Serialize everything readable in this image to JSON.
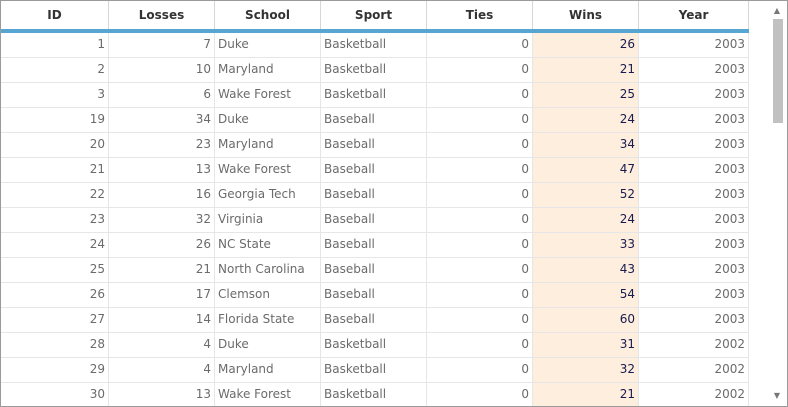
{
  "columns": {
    "id": "ID",
    "losses": "Losses",
    "school": "School",
    "sport": "Sport",
    "ties": "Ties",
    "wins": "Wins",
    "year": "Year"
  },
  "rows": [
    {
      "id": "1",
      "losses": "7",
      "school": "Duke",
      "sport": "Basketball",
      "ties": "0",
      "wins": "26",
      "year": "2003"
    },
    {
      "id": "2",
      "losses": "10",
      "school": "Maryland",
      "sport": "Basketball",
      "ties": "0",
      "wins": "21",
      "year": "2003"
    },
    {
      "id": "3",
      "losses": "6",
      "school": "Wake Forest",
      "sport": "Basketball",
      "ties": "0",
      "wins": "25",
      "year": "2003"
    },
    {
      "id": "19",
      "losses": "34",
      "school": "Duke",
      "sport": "Baseball",
      "ties": "0",
      "wins": "24",
      "year": "2003"
    },
    {
      "id": "20",
      "losses": "23",
      "school": "Maryland",
      "sport": "Baseball",
      "ties": "0",
      "wins": "34",
      "year": "2003"
    },
    {
      "id": "21",
      "losses": "13",
      "school": "Wake Forest",
      "sport": "Baseball",
      "ties": "0",
      "wins": "47",
      "year": "2003"
    },
    {
      "id": "22",
      "losses": "16",
      "school": "Georgia Tech",
      "sport": "Baseball",
      "ties": "0",
      "wins": "52",
      "year": "2003"
    },
    {
      "id": "23",
      "losses": "32",
      "school": "Virginia",
      "sport": "Baseball",
      "ties": "0",
      "wins": "24",
      "year": "2003"
    },
    {
      "id": "24",
      "losses": "26",
      "school": "NC State",
      "sport": "Baseball",
      "ties": "0",
      "wins": "33",
      "year": "2003"
    },
    {
      "id": "25",
      "losses": "21",
      "school": "North Carolina",
      "sport": "Baseball",
      "ties": "0",
      "wins": "43",
      "year": "2003"
    },
    {
      "id": "26",
      "losses": "17",
      "school": "Clemson",
      "sport": "Baseball",
      "ties": "0",
      "wins": "54",
      "year": "2003"
    },
    {
      "id": "27",
      "losses": "14",
      "school": "Florida State",
      "sport": "Baseball",
      "ties": "0",
      "wins": "60",
      "year": "2003"
    },
    {
      "id": "28",
      "losses": "4",
      "school": "Duke",
      "sport": "Basketball",
      "ties": "0",
      "wins": "31",
      "year": "2002"
    },
    {
      "id": "29",
      "losses": "4",
      "school": "Maryland",
      "sport": "Basketball",
      "ties": "0",
      "wins": "32",
      "year": "2002"
    },
    {
      "id": "30",
      "losses": "13",
      "school": "Wake Forest",
      "sport": "Basketball",
      "ties": "0",
      "wins": "21",
      "year": "2002"
    }
  ],
  "scrollbar": {
    "up_glyph": "▲",
    "down_glyph": "▼"
  }
}
